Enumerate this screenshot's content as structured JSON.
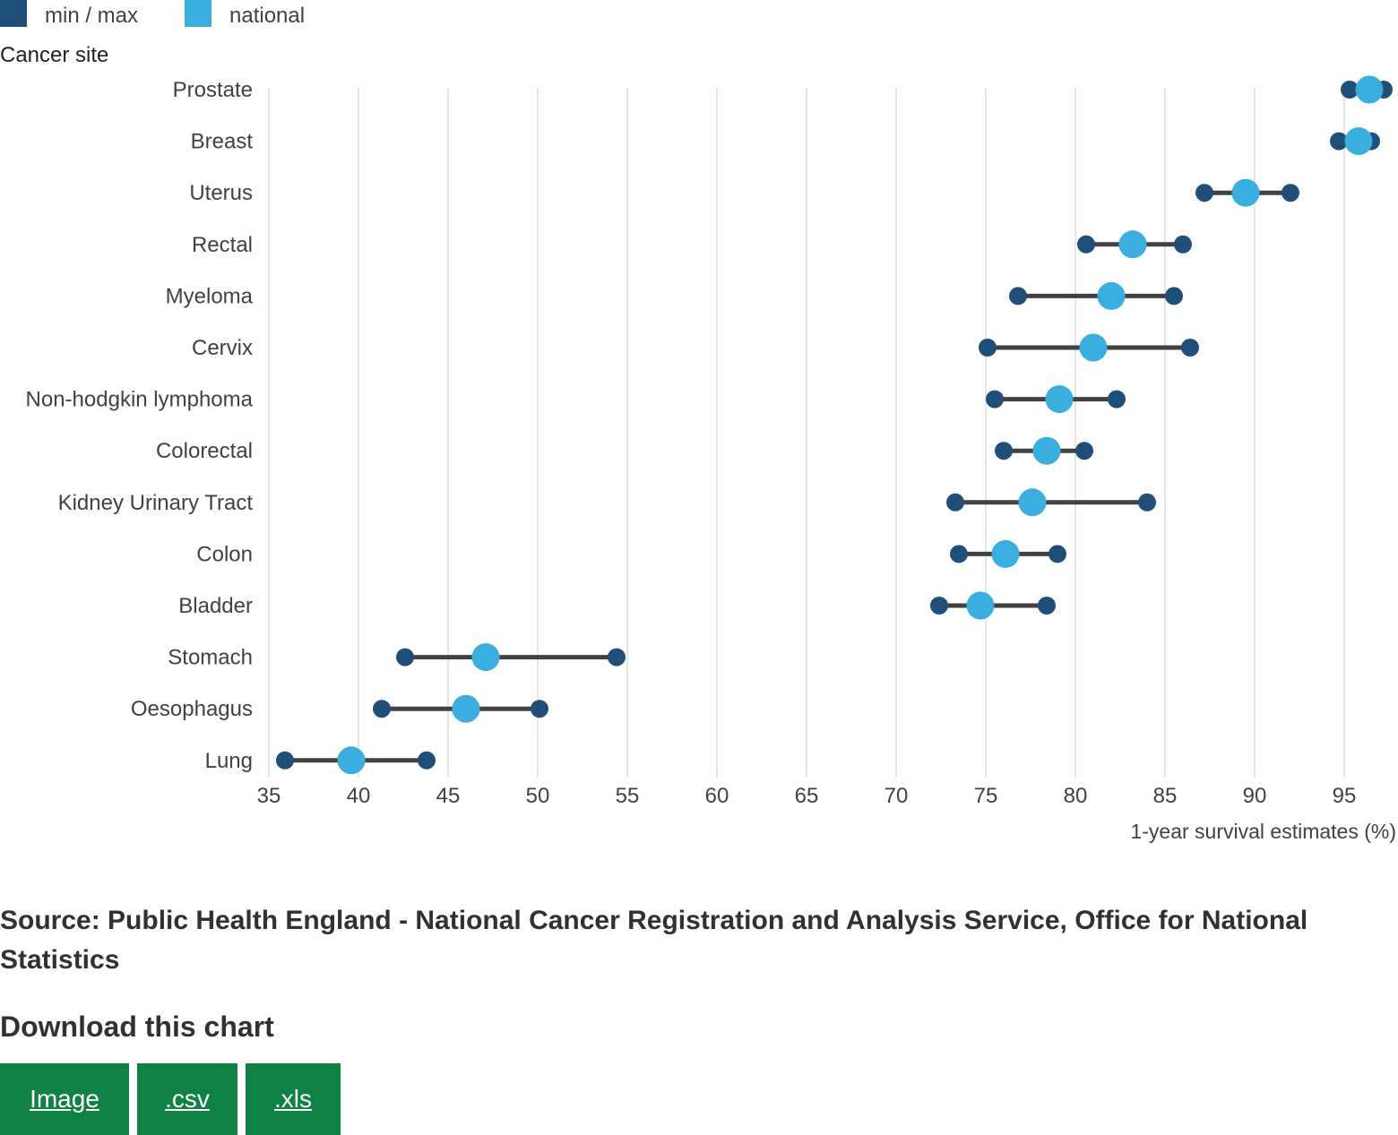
{
  "legend": {
    "items": [
      {
        "label": "min / max",
        "color": "#1f4e79"
      },
      {
        "label": "national",
        "color": "#3baee0"
      }
    ]
  },
  "chart_data": {
    "type": "dumbbell",
    "ylabel": "Cancer site",
    "xlabel": "1-year survival estimates (%)",
    "xlim": [
      35,
      97.5
    ],
    "xticks": [
      35,
      40,
      45,
      50,
      55,
      60,
      65,
      70,
      75,
      80,
      85,
      90,
      95
    ],
    "grid": true,
    "legend_position": "top-left",
    "categories": [
      "Prostate",
      "Breast",
      "Uterus",
      "Rectal",
      "Myeloma",
      "Cervix",
      "Non-hodgkin lymphoma",
      "Colorectal",
      "Kidney Urinary Tract",
      "Colon",
      "Bladder",
      "Stomach",
      "Oesophagus",
      "Lung"
    ],
    "series": [
      {
        "name": "min / max",
        "min": [
          95.3,
          94.7,
          87.2,
          80.6,
          76.8,
          75.1,
          75.5,
          76.0,
          73.3,
          73.5,
          72.4,
          42.6,
          41.3,
          35.9
        ],
        "max": [
          97.2,
          96.5,
          92.0,
          86.0,
          85.5,
          86.4,
          82.3,
          80.5,
          84.0,
          79.0,
          78.4,
          54.4,
          50.1,
          43.8
        ]
      },
      {
        "name": "national",
        "values": [
          96.4,
          95.8,
          89.5,
          83.2,
          82.0,
          81.0,
          79.1,
          78.4,
          77.6,
          76.1,
          74.7,
          47.1,
          46.0,
          39.6
        ]
      }
    ]
  },
  "source": "Source: Public Health England - National Cancer Registration and Analysis Service, Office for National Statistics",
  "download": {
    "title": "Download this chart",
    "buttons": [
      {
        "label": "Image"
      },
      {
        "label": ".csv"
      },
      {
        "label": ".xls"
      }
    ]
  },
  "colors": {
    "min_max": "#1f4e79",
    "national": "#3baee0",
    "range_line": "#414042",
    "grid": "#dddddd",
    "button": "#0f8243"
  }
}
